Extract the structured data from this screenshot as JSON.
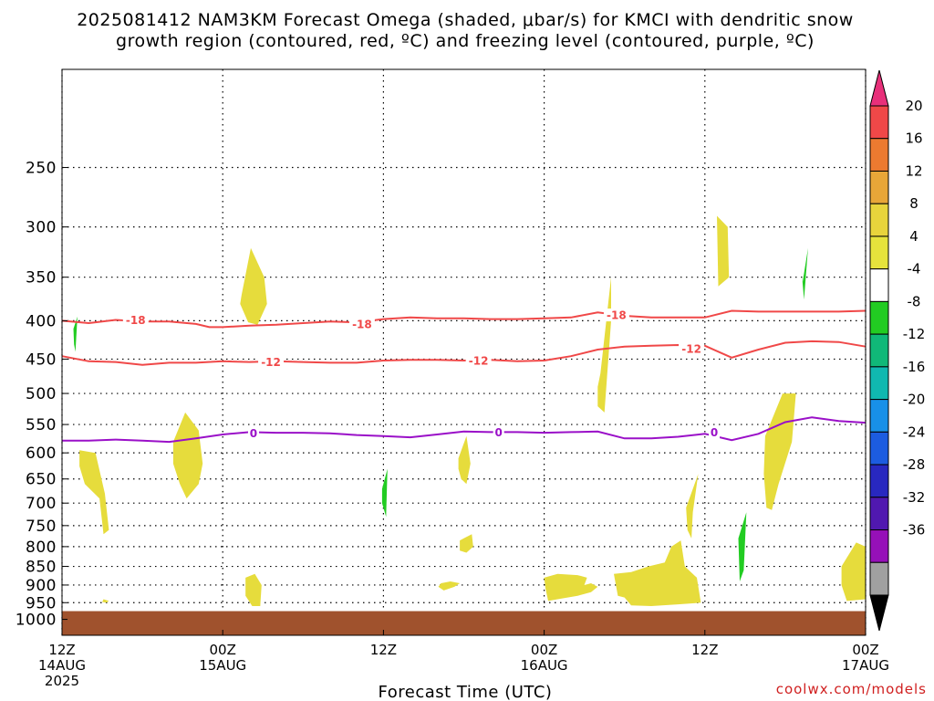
{
  "chart_data": {
    "type": "heatmap",
    "title_line1": "2025081412 NAM3KM Forecast Omega (shaded, μbar/s) for KMCI with dendritic snow",
    "title_line2": "growth region (contoured, red, ºC) and freezing level (contoured, purple, ºC)",
    "xlabel": "Forecast Time (UTC)",
    "ylabel": "",
    "credit": "coolwx.com/models",
    "y_axis": {
      "scale": "log",
      "reversed": true,
      "ylim": [
        1050,
        185
      ],
      "ticks": [
        250,
        300,
        350,
        400,
        450,
        500,
        550,
        600,
        650,
        700,
        750,
        800,
        850,
        900,
        950,
        1000
      ]
    },
    "x_axis": {
      "unit": "hours since 2025-08-14 12Z",
      "xlim": [
        0,
        60
      ],
      "ticks": [
        {
          "hour": 0,
          "lines": [
            "12Z",
            "14AUG",
            "2025"
          ]
        },
        {
          "hour": 12,
          "lines": [
            "00Z",
            "15AUG"
          ]
        },
        {
          "hour": 24,
          "lines": [
            "12Z"
          ]
        },
        {
          "hour": 36,
          "lines": [
            "00Z",
            "16AUG"
          ]
        },
        {
          "hour": 48,
          "lines": [
            "12Z"
          ]
        },
        {
          "hour": 60,
          "lines": [
            "00Z",
            "17AUG"
          ]
        }
      ]
    },
    "grid": true,
    "colorbar": {
      "tick_labels": [
        "20",
        "16",
        "12",
        "8",
        "4",
        "-4",
        "-8",
        "-12",
        "-16",
        "-20",
        "-24",
        "-28",
        "-32",
        "-36"
      ],
      "colors_top_to_bottom": [
        "#e8307a",
        "#f04848",
        "#ec7a30",
        "#e8a638",
        "#e8d43c",
        "#e6e33c",
        "#ffffff",
        "#22cc22",
        "#10b878",
        "#10b8b0",
        "#1890e8",
        "#1c5ce0",
        "#2828c0",
        "#5018b0",
        "#9610b8",
        "#a0a0a0",
        "#000000"
      ]
    },
    "terrain": {
      "surface_hpa": 975,
      "color": "#a0522d"
    },
    "series": [
      {
        "kind": "contour",
        "level": "-18",
        "color": "#f04848",
        "x": [
          0,
          2,
          4,
          6,
          8,
          10,
          11,
          12,
          14,
          16,
          18,
          20,
          22,
          24,
          26,
          28,
          30,
          32,
          34,
          36,
          38,
          40,
          42,
          44,
          46,
          48,
          50,
          52,
          54,
          56,
          58,
          60
        ],
        "y": [
          400,
          403,
          399,
          401,
          401,
          404,
          408,
          408,
          406,
          405,
          403,
          401,
          402,
          398,
          396,
          397,
          397,
          398,
          398,
          397,
          396,
          390,
          394,
          396,
          396,
          396,
          388,
          389,
          389,
          389,
          389,
          388
        ]
      },
      {
        "kind": "contour",
        "level": "-12",
        "color": "#f04848",
        "x": [
          0,
          2,
          4,
          6,
          8,
          10,
          12,
          14,
          16,
          18,
          20,
          22,
          24,
          26,
          28,
          30,
          32,
          34,
          36,
          38,
          40,
          42,
          44,
          46,
          48,
          50,
          52,
          54,
          56,
          58,
          60
        ],
        "y": [
          446,
          453,
          454,
          458,
          455,
          455,
          453,
          454,
          453,
          454,
          455,
          455,
          452,
          451,
          451,
          452,
          451,
          453,
          452,
          446,
          437,
          433,
          432,
          431,
          432,
          448,
          437,
          428,
          426,
          427,
          433
        ]
      },
      {
        "kind": "contour",
        "level": "0",
        "color": "#9a10c8",
        "x": [
          0,
          2,
          4,
          6,
          8,
          10,
          12,
          14,
          16,
          18,
          20,
          22,
          24,
          26,
          28,
          30,
          32,
          34,
          36,
          38,
          40,
          42,
          44,
          46,
          48,
          50,
          52,
          54,
          56,
          58,
          60
        ],
        "y": [
          578,
          578,
          576,
          578,
          580,
          574,
          567,
          563,
          564,
          564,
          565,
          568,
          570,
          572,
          567,
          562,
          563,
          563,
          564,
          563,
          562,
          574,
          574,
          571,
          566,
          577,
          566,
          546,
          538,
          544,
          547
        ]
      }
    ],
    "contour_labels": [
      {
        "text": "-18",
        "x": 5.5,
        "y": 399,
        "color": "#f04848"
      },
      {
        "text": "-18",
        "x": 22.4,
        "y": 404,
        "color": "#f04848"
      },
      {
        "text": "-18",
        "x": 41.4,
        "y": 393,
        "color": "#f04848"
      },
      {
        "text": "-12",
        "x": 15.6,
        "y": 454,
        "color": "#f04848"
      },
      {
        "text": "-12",
        "x": 31.1,
        "y": 452,
        "color": "#f04848"
      },
      {
        "text": "-12",
        "x": 47.0,
        "y": 436,
        "color": "#f04848"
      },
      {
        "text": "0",
        "x": 14.3,
        "y": 565,
        "color": "#9a10c8"
      },
      {
        "text": "0",
        "x": 32.6,
        "y": 563,
        "color": "#9a10c8"
      },
      {
        "text": "0",
        "x": 48.7,
        "y": 563,
        "color": "#9a10c8"
      }
    ],
    "shaded_regions": [
      {
        "color": "#e6dc3c",
        "x": [
          1.3,
          2.5,
          3.2,
          3.5,
          3.1,
          2.8,
          1.7,
          1.3
        ],
        "y": [
          595,
          600,
          680,
          760,
          770,
          690,
          660,
          625
        ]
      },
      {
        "color": "#e6dc3c",
        "x": [
          3.1,
          3.5,
          3.3,
          3.0
        ],
        "y": [
          940,
          945,
          950,
          948
        ]
      },
      {
        "color": "#e6dc3c",
        "x": [
          8.3,
          9.2,
          10.2,
          10.5,
          10.2,
          9.3,
          8.8,
          8.3
        ],
        "y": [
          580,
          530,
          560,
          620,
          660,
          690,
          660,
          620
        ]
      },
      {
        "color": "#e6dc3c",
        "x": [
          13.4,
          14.1,
          15.1,
          15.3,
          14.6,
          13.9,
          13.3
        ],
        "y": [
          370,
          320,
          350,
          380,
          405,
          402,
          380
        ]
      },
      {
        "color": "#e6dc3c",
        "x": [
          13.7,
          14.4,
          14.9,
          14.8,
          14.2,
          13.7
        ],
        "y": [
          880,
          870,
          900,
          960,
          960,
          930
        ]
      },
      {
        "color": "#22cc22",
        "x": [
          0.85,
          1.15,
          1.0,
          0.9
        ],
        "y": [
          410,
          395,
          440,
          430
        ]
      },
      {
        "color": "#22cc22",
        "x": [
          23.9,
          24.3,
          24.2,
          23.9
        ],
        "y": [
          670,
          630,
          730,
          700
        ]
      },
      {
        "color": "#e6dc3c",
        "x": [
          29.6,
          30.2,
          30.5,
          30.2,
          29.8,
          29.6
        ],
        "y": [
          610,
          570,
          620,
          660,
          650,
          630
        ]
      },
      {
        "color": "#e6dc3c",
        "x": [
          29.7,
          30.6,
          30.7,
          30.2,
          29.7
        ],
        "y": [
          785,
          770,
          800,
          815,
          810
        ]
      },
      {
        "color": "#e6dc3c",
        "x": [
          28.3,
          29.0,
          29.7,
          29.3,
          28.5,
          28.1
        ],
        "y": [
          895,
          890,
          895,
          905,
          915,
          905
        ]
      },
      {
        "color": "#e6dc3c",
        "x": [
          36.0,
          37.0,
          38.5,
          39.2,
          39.0,
          39.5,
          40.0,
          39.5,
          38.5,
          37.0,
          36.3,
          36.1
        ],
        "y": [
          880,
          870,
          873,
          880,
          900,
          895,
          905,
          920,
          930,
          940,
          945,
          910
        ]
      },
      {
        "color": "#e6dc3c",
        "x": [
          40.2,
          41.0,
          41.0,
          40.5,
          40.0,
          40.0
        ],
        "y": [
          470,
          350,
          400,
          530,
          520,
          490
        ]
      },
      {
        "color": "#e6dc3c",
        "x": [
          41.2,
          42.5,
          43.8,
          45.0,
          45.5,
          46.2,
          46.5,
          47.4,
          47.7,
          46.0,
          44.0,
          42.5,
          42.0,
          41.5
        ],
        "y": [
          870,
          865,
          850,
          840,
          800,
          785,
          850,
          880,
          950,
          955,
          960,
          958,
          935,
          930
        ]
      },
      {
        "color": "#e6dc3c",
        "x": [
          46.6,
          47.5,
          47.1,
          47.0,
          46.7
        ],
        "y": [
          710,
          640,
          720,
          780,
          760
        ]
      },
      {
        "color": "#e6dc3c",
        "x": [
          48.9,
          49.7,
          49.8,
          49.0
        ],
        "y": [
          290,
          300,
          350,
          360
        ]
      },
      {
        "color": "#22cc22",
        "x": [
          50.5,
          51.1,
          50.9,
          50.6
        ],
        "y": [
          780,
          720,
          860,
          890
        ]
      },
      {
        "color": "#e6dc3c",
        "x": [
          52.5,
          53.8,
          54.8,
          54.5,
          53.5,
          53.0,
          52.6,
          52.4
        ],
        "y": [
          570,
          500,
          500,
          580,
          660,
          715,
          710,
          640
        ]
      },
      {
        "color": "#22cc22",
        "x": [
          55.3,
          55.7,
          55.4,
          55.2
        ],
        "y": [
          355,
          320,
          375,
          340
        ]
      },
      {
        "color": "#e6dc3c",
        "x": [
          58.2,
          59.3,
          60.0,
          60.0,
          58.6,
          58.2
        ],
        "y": [
          850,
          790,
          800,
          940,
          945,
          900
        ]
      }
    ]
  }
}
